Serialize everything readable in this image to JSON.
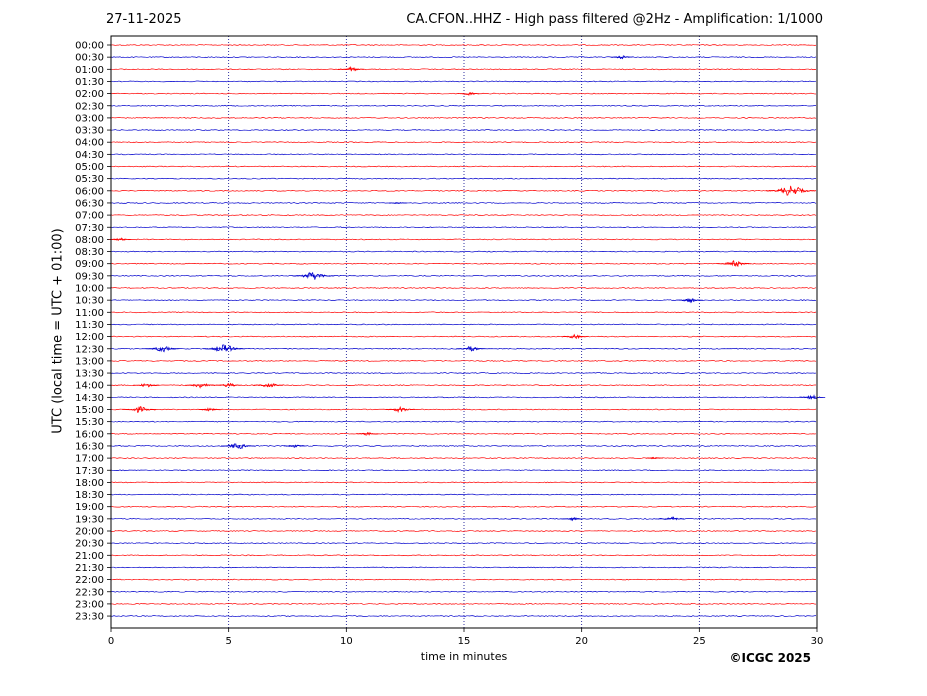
{
  "header": {
    "date": "27-11-2025",
    "title": "CA.CFON..HHZ - High pass filtered @2Hz - Amplification: 1/1000"
  },
  "footer": {
    "copyright": "©ICGC 2025"
  },
  "colors": {
    "trace_red": "#ff0000",
    "trace_blue": "#0000cc",
    "grid": "#00008b"
  },
  "chart_data": {
    "type": "line",
    "title": "CA.CFON..HHZ - High pass filtered @2Hz - Amplification: 1/1000",
    "xlabel": "time in minutes",
    "ylabel": "UTC (local time = UTC + 01:00)",
    "xlim": [
      0,
      30
    ],
    "x_ticks": [
      "0",
      "5",
      "10",
      "15",
      "20",
      "25",
      "30"
    ],
    "grid": "vertical dotted lines at 5, 10, 15, 20, 25",
    "trace_color_pattern": [
      "red",
      "blue"
    ],
    "rows": [
      "00:00",
      "00:30",
      "01:00",
      "01:30",
      "02:00",
      "02:30",
      "03:00",
      "03:30",
      "04:00",
      "04:30",
      "05:00",
      "05:30",
      "06:00",
      "06:30",
      "07:00",
      "07:30",
      "08:00",
      "08:30",
      "09:00",
      "09:30",
      "10:00",
      "10:30",
      "11:00",
      "11:30",
      "12:00",
      "12:30",
      "13:00",
      "13:30",
      "14:00",
      "14:30",
      "15:00",
      "15:30",
      "16:00",
      "16:30",
      "17:00",
      "17:30",
      "18:00",
      "18:30",
      "19:00",
      "19:30",
      "20:00",
      "20:30",
      "21:00",
      "21:30",
      "22:00",
      "22:30",
      "23:00",
      "23:30"
    ],
    "events": [
      {
        "row": "00:30",
        "minute": 21.7,
        "amplitude": 1.5
      },
      {
        "row": "01:00",
        "minute": 10.2,
        "amplitude": 2
      },
      {
        "row": "02:00",
        "minute": 15.2,
        "amplitude": 1.5
      },
      {
        "row": "06:00",
        "minute": 28.9,
        "amplitude": 5
      },
      {
        "row": "06:30",
        "minute": 12.2,
        "amplitude": 1
      },
      {
        "row": "08:00",
        "minute": 0.4,
        "amplitude": 1.5
      },
      {
        "row": "09:00",
        "minute": 26.5,
        "amplitude": 3
      },
      {
        "row": "09:30",
        "minute": 8.6,
        "amplitude": 4
      },
      {
        "row": "10:30",
        "minute": 24.6,
        "amplitude": 2
      },
      {
        "row": "12:00",
        "minute": 19.7,
        "amplitude": 2
      },
      {
        "row": "12:30",
        "minute": 2.2,
        "amplitude": 3
      },
      {
        "row": "12:30",
        "minute": 4.8,
        "amplitude": 4
      },
      {
        "row": "12:30",
        "minute": 15.3,
        "amplitude": 2.5
      },
      {
        "row": "14:00",
        "minute": 1.5,
        "amplitude": 2
      },
      {
        "row": "14:00",
        "minute": 3.8,
        "amplitude": 2.5
      },
      {
        "row": "14:00",
        "minute": 5.0,
        "amplitude": 2
      },
      {
        "row": "14:00",
        "minute": 6.7,
        "amplitude": 2.5
      },
      {
        "row": "14:30",
        "minute": 29.8,
        "amplitude": 2
      },
      {
        "row": "15:00",
        "minute": 1.2,
        "amplitude": 3
      },
      {
        "row": "15:00",
        "minute": 4.2,
        "amplitude": 1.5
      },
      {
        "row": "15:00",
        "minute": 12.3,
        "amplitude": 2.5
      },
      {
        "row": "16:00",
        "minute": 10.9,
        "amplitude": 1.5
      },
      {
        "row": "16:30",
        "minute": 5.4,
        "amplitude": 3
      },
      {
        "row": "16:30",
        "minute": 7.8,
        "amplitude": 1.5
      },
      {
        "row": "17:00",
        "minute": 23.1,
        "amplitude": 1
      },
      {
        "row": "19:30",
        "minute": 19.6,
        "amplitude": 1.5
      },
      {
        "row": "19:30",
        "minute": 23.8,
        "amplitude": 2
      }
    ]
  }
}
